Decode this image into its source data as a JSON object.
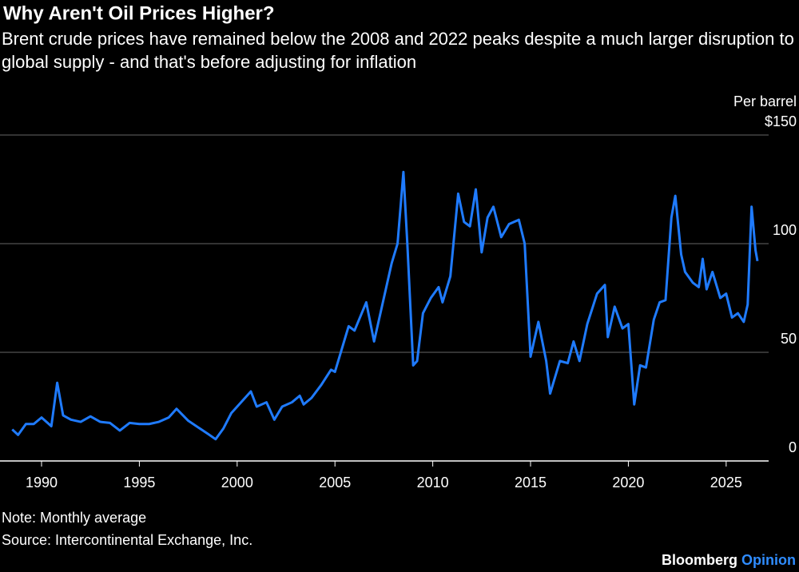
{
  "chart_data": {
    "type": "line",
    "title": "Why Aren't Oil Prices Higher?",
    "subtitle": "Brent crude prices have remained below the 2008 and 2022 peaks despite a much larger disruption to global supply - and that's before adjusting for inflation",
    "y_label": "Per barrel",
    "note": "Note: Monthly average",
    "source": "Source: Intercontinental Exchange, Inc.",
    "brand": "Bloomberg",
    "brand_suffix": "Opinion",
    "color": "#1f7bff",
    "x": [
      1988.5,
      1988.8,
      1989.2,
      1989.6,
      1990.0,
      1990.5,
      1990.8,
      1991.1,
      1991.5,
      1992.0,
      1992.5,
      1993.0,
      1993.5,
      1994.0,
      1994.5,
      1995.0,
      1995.5,
      1996.0,
      1996.5,
      1996.9,
      1997.5,
      1998.0,
      1998.5,
      1998.9,
      1999.3,
      1999.7,
      2000.0,
      2000.7,
      2001.0,
      2001.5,
      2001.9,
      2002.3,
      2002.8,
      2003.2,
      2003.4,
      2003.8,
      2004.3,
      2004.8,
      2005.0,
      2005.7,
      2006.0,
      2006.6,
      2007.0,
      2007.5,
      2007.9,
      2008.2,
      2008.5,
      2008.7,
      2009.0,
      2009.2,
      2009.5,
      2009.9,
      2010.3,
      2010.5,
      2010.9,
      2011.3,
      2011.6,
      2011.9,
      2012.2,
      2012.5,
      2012.8,
      2013.1,
      2013.5,
      2013.9,
      2014.4,
      2014.7,
      2015.0,
      2015.4,
      2015.8,
      2016.0,
      2016.5,
      2016.9,
      2017.2,
      2017.5,
      2017.9,
      2018.4,
      2018.8,
      2018.95,
      2019.3,
      2019.7,
      2020.0,
      2020.3,
      2020.6,
      2020.9,
      2021.3,
      2021.6,
      2021.9,
      2022.2,
      2022.4,
      2022.7,
      2022.9,
      2023.3,
      2023.6,
      2023.8,
      2024.0,
      2024.3,
      2024.7,
      2025.0,
      2025.3,
      2025.6,
      2025.9,
      2026.1,
      2026.3,
      2026.5,
      2026.6
    ],
    "values": [
      14.5,
      12,
      17,
      17,
      20,
      16,
      36,
      21,
      19,
      18,
      20.5,
      18,
      17.5,
      14,
      17.5,
      17,
      17,
      18,
      20,
      24,
      18.5,
      15.5,
      12.5,
      10,
      15,
      22,
      25,
      32,
      25,
      27,
      19,
      25,
      27,
      30,
      26,
      29,
      35,
      42,
      41,
      62,
      60,
      73,
      55,
      75,
      91,
      100,
      133,
      100,
      44,
      46,
      68,
      75,
      80,
      73,
      85,
      123,
      110,
      108,
      125,
      96,
      112,
      117,
      103,
      109,
      111,
      100,
      48,
      64,
      46,
      31,
      46,
      45,
      55,
      46,
      63,
      77,
      81,
      57,
      71,
      61,
      63,
      26,
      44,
      43,
      65,
      73,
      74,
      112,
      122,
      95,
      87,
      82,
      80,
      93,
      79,
      87,
      75,
      77,
      66,
      68,
      64,
      72,
      117,
      97,
      92
    ],
    "xlim": [
      1988.1,
      2026.6
    ],
    "xticks": [
      1990,
      1995,
      2000,
      2005,
      2010,
      2015,
      2020,
      2025
    ],
    "ylim": [
      0,
      150
    ],
    "yticks": [
      0,
      50,
      100,
      {
        "value": 150,
        "label": "$150"
      }
    ],
    "grid": true
  }
}
